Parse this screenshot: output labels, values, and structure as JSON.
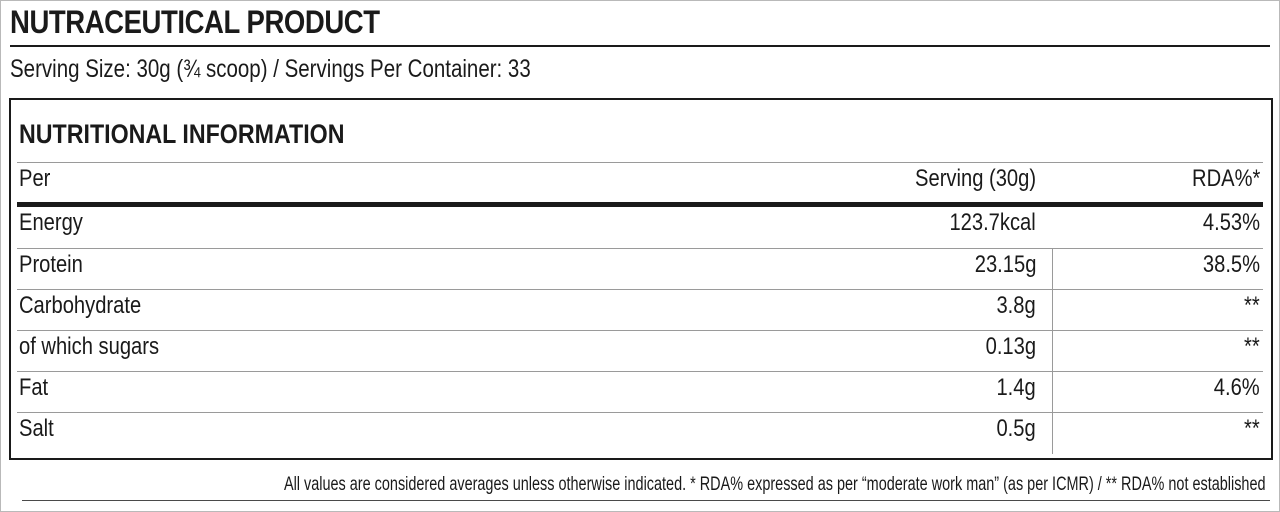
{
  "product": {
    "title": "NUTRACEUTICAL PRODUCT",
    "serving_line": "Serving Size: 30g (¾ scoop)  / Servings Per Container: 33"
  },
  "table": {
    "heading": "NUTRITIONAL INFORMATION",
    "columns": {
      "per": "Per",
      "serving": "Serving (30g)",
      "rda": "RDA%*"
    },
    "rows": [
      {
        "name": "Energy",
        "serving": "123.7kcal",
        "rda": "4.53%"
      },
      {
        "name": "Protein",
        "serving": "23.15g",
        "rda": "38.5%"
      },
      {
        "name": "Carbohydrate",
        "serving": "3.8g",
        "rda": "**"
      },
      {
        "name": "of which sugars",
        "serving": "0.13g",
        "rda": "**"
      },
      {
        "name": "Fat",
        "serving": "1.4g",
        "rda": "4.6%"
      },
      {
        "name": "Salt",
        "serving": "0.5g",
        "rda": "**"
      }
    ]
  },
  "footnote": "All values are considered averages unless otherwise indicated. * RDA% expressed as per “moderate work man” (as per ICMR) /  ** RDA% not established"
}
